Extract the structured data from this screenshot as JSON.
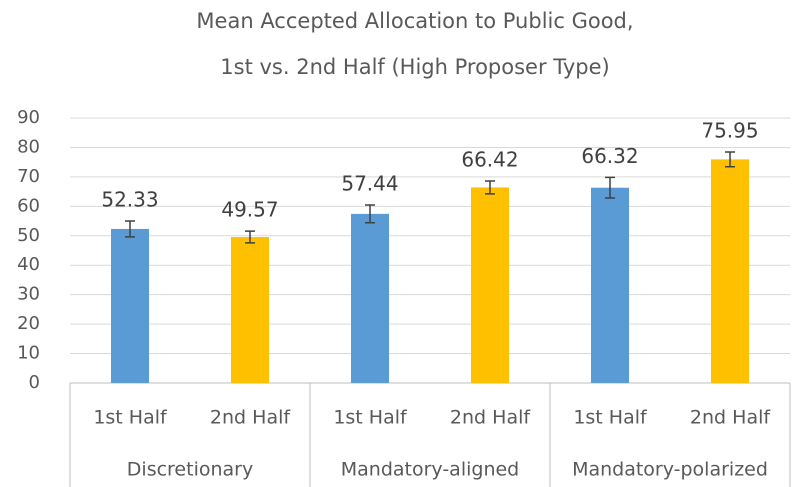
{
  "chart_data": {
    "type": "bar",
    "title": [
      "Mean Accepted Allocation to Public Good,",
      "1st vs. 2nd Half (High Proposer Type)"
    ],
    "categories": [
      "Discretionary",
      "Mandatory-aligned",
      "Mandatory-polarized"
    ],
    "series": [
      {
        "name": "1st Half",
        "color": "#5b9bd5",
        "values": [
          52.33,
          57.44,
          66.32
        ],
        "errors": [
          2.7,
          3,
          3.5
        ]
      },
      {
        "name": "2nd Half",
        "color": "#ffc000",
        "values": [
          49.57,
          66.42,
          75.95
        ],
        "errors": [
          2,
          2.2,
          2.5
        ]
      }
    ],
    "ylim": [
      0,
      90
    ],
    "yticks": [
      0,
      10,
      20,
      30,
      40,
      50,
      60,
      70,
      80,
      90
    ],
    "grid": true
  }
}
